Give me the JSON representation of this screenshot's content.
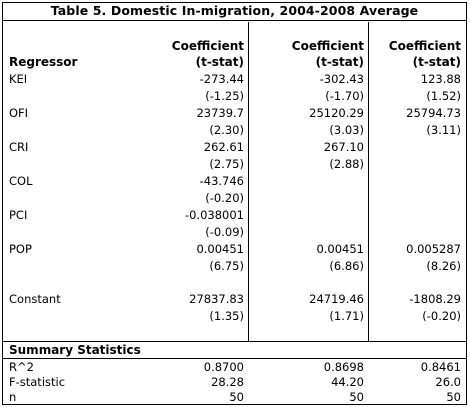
{
  "title": "Table 5. Domestic In-migration, 2004-2008 Average",
  "header": {
    "regressor": "Regressor",
    "col_line1": "Coefficient",
    "col_line2": "(t-stat)"
  },
  "rows": [
    {
      "label": "KEI",
      "coef": [
        "-273.44",
        "-302.43",
        "123.88"
      ],
      "tstat": [
        "(-1.25)",
        "(-1.70)",
        "(1.52)"
      ]
    },
    {
      "label": "OFI",
      "coef": [
        "23739.7",
        "25120.29",
        "25794.73"
      ],
      "tstat": [
        "(2.30)",
        "(3.03)",
        "(3.11)"
      ]
    },
    {
      "label": "CRI",
      "coef": [
        "262.61",
        "267.10",
        ""
      ],
      "tstat": [
        "(2.75)",
        "(2.88)",
        ""
      ]
    },
    {
      "label": "COL",
      "coef": [
        "-43.746",
        "",
        ""
      ],
      "tstat": [
        "(-0.20)",
        "",
        ""
      ]
    },
    {
      "label": "PCI",
      "coef": [
        "-0.038001",
        "",
        ""
      ],
      "tstat": [
        "(-0.09)",
        "",
        ""
      ]
    },
    {
      "label": "POP",
      "coef": [
        "0.00451",
        "0.00451",
        "0.005287"
      ],
      "tstat": [
        "(6.75)",
        "(6.86)",
        "(8.26)"
      ]
    },
    {
      "label": "Constant",
      "coef": [
        "27837.83",
        "24719.46",
        "-1808.29"
      ],
      "tstat": [
        "(1.35)",
        "(1.71)",
        "(-0.20)"
      ]
    }
  ],
  "summary": {
    "heading": "Summary Statistics",
    "stats": [
      {
        "label": "R^2",
        "values": [
          "0.8700",
          "0.8698",
          "0.8461"
        ]
      },
      {
        "label": "F-statistic",
        "values": [
          "28.28",
          "44.20",
          "26.0"
        ]
      },
      {
        "label": "n",
        "values": [
          "50",
          "50",
          "50"
        ]
      }
    ]
  }
}
